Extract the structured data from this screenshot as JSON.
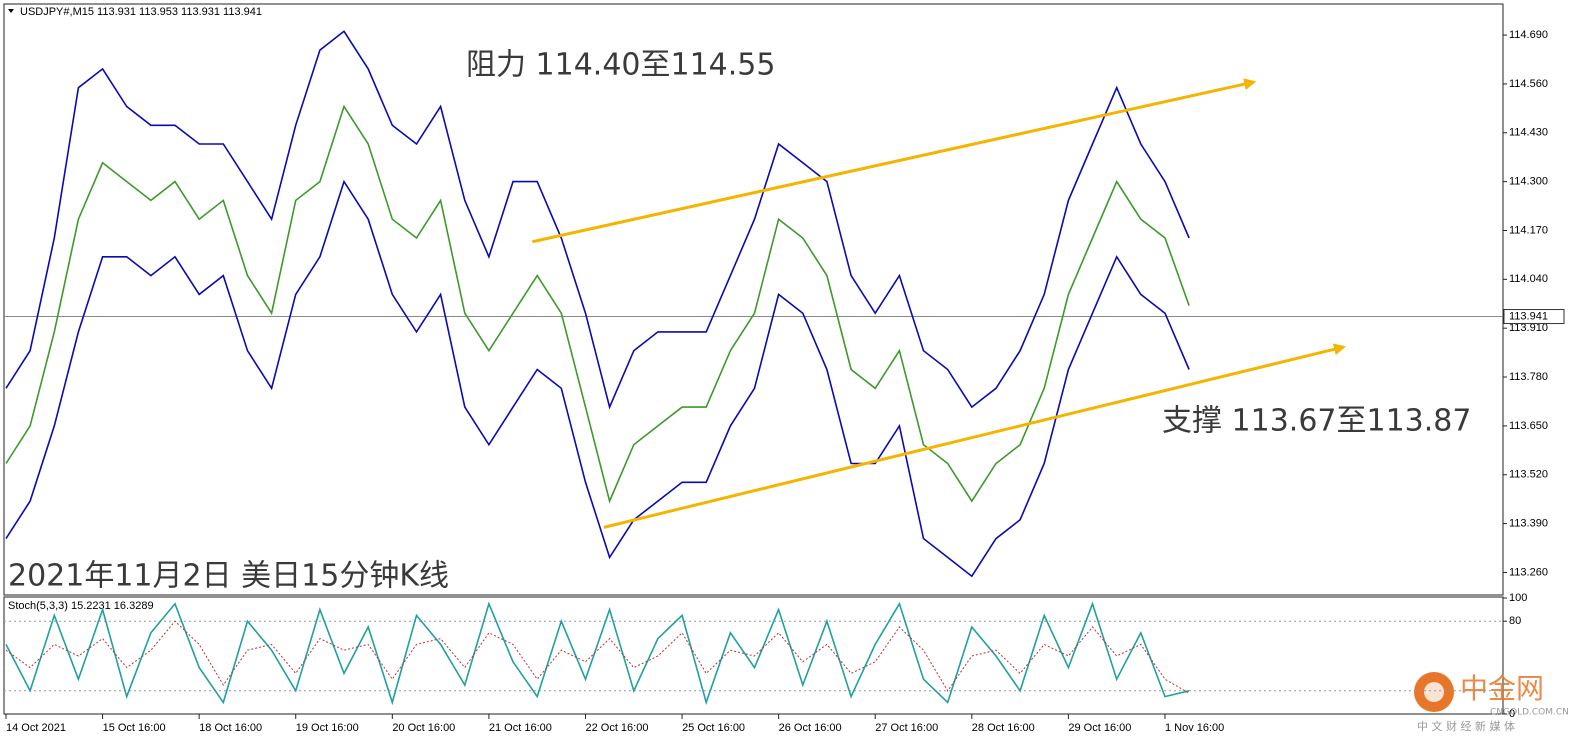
{
  "chart_data": [
    {
      "type": "line",
      "title": "USDJPY#,M15  113.931 113.953 113.931 113.941",
      "x": [
        0,
        0.25,
        0.5,
        0.75,
        1,
        1.25,
        1.5,
        1.75,
        2,
        2.25,
        2.5,
        2.75,
        3,
        3.25,
        3.5,
        3.75,
        4,
        4.25,
        4.5,
        4.75,
        5,
        5.25,
        5.5,
        5.75,
        6,
        6.25,
        6.5,
        6.75,
        7,
        7.25,
        7.5,
        7.75,
        8,
        8.25,
        8.5,
        8.75,
        9,
        9.25,
        9.5,
        9.75,
        10,
        10.25,
        10.5,
        10.75,
        11,
        11.25,
        11.5,
        11.75,
        12,
        12.25
      ],
      "series": [
        {
          "color": "#0a0ab4",
          "values": [
            113.75,
            113.85,
            114.15,
            114.55,
            114.6,
            114.5,
            114.45,
            114.45,
            114.4,
            114.4,
            114.3,
            114.2,
            114.45,
            114.65,
            114.7,
            114.6,
            114.45,
            114.4,
            114.5,
            114.25,
            114.1,
            114.3,
            114.3,
            114.15,
            113.95,
            113.7,
            113.85,
            113.9,
            113.9,
            113.9,
            114.05,
            114.2,
            114.4,
            114.35,
            114.3,
            114.05,
            113.95,
            114.05,
            113.85,
            113.8,
            113.7,
            113.75,
            113.85,
            114.0,
            114.25,
            114.4,
            114.55,
            114.4,
            114.3,
            114.15
          ]
        },
        {
          "color": "#3c9a2a",
          "values": [
            113.55,
            113.65,
            113.9,
            114.2,
            114.35,
            114.3,
            114.25,
            114.3,
            114.2,
            114.25,
            114.05,
            113.95,
            114.25,
            114.3,
            114.5,
            114.4,
            114.2,
            114.15,
            114.25,
            113.95,
            113.85,
            113.95,
            114.05,
            113.95,
            113.7,
            113.45,
            113.6,
            113.65,
            113.7,
            113.7,
            113.85,
            113.95,
            114.2,
            114.15,
            114.05,
            113.8,
            113.75,
            113.85,
            113.6,
            113.55,
            113.45,
            113.55,
            113.6,
            113.75,
            114.0,
            114.15,
            114.3,
            114.2,
            114.15,
            113.97
          ]
        },
        {
          "color": "#0a0ab4",
          "values": [
            113.35,
            113.45,
            113.65,
            113.9,
            114.1,
            114.1,
            114.05,
            114.1,
            114.0,
            114.05,
            113.85,
            113.75,
            114.0,
            114.1,
            114.3,
            114.2,
            114.0,
            113.9,
            114.0,
            113.7,
            113.6,
            113.7,
            113.8,
            113.75,
            113.5,
            113.3,
            113.4,
            113.45,
            113.5,
            113.5,
            113.65,
            113.75,
            114.0,
            113.95,
            113.8,
            113.55,
            113.55,
            113.65,
            113.35,
            113.3,
            113.25,
            113.35,
            113.4,
            113.55,
            113.8,
            113.95,
            114.1,
            114.0,
            113.95,
            113.8
          ]
        }
      ],
      "trend_lines": [
        {
          "color": "#f5b400",
          "x": [
            5.45,
            12.92
          ],
          "values": [
            114.14,
            114.565
          ]
        },
        {
          "color": "#f5b400",
          "x": [
            6.19,
            13.85
          ],
          "values": [
            113.38,
            113.86
          ]
        }
      ],
      "last_price": 113.941,
      "annotations": [
        "阻力 114.40至114.55",
        "支撑 113.67至113.87",
        "2021年11月2日 美日15分钟K线"
      ],
      "xlim": [
        0,
        15.5
      ],
      "xticks": [
        {
          "value": 0,
          "label": "14 Oct 2021"
        },
        {
          "value": 1,
          "label": "15 Oct 16:00"
        },
        {
          "value": 2,
          "label": "18 Oct 16:00"
        },
        {
          "value": 3,
          "label": "19 Oct 16:00"
        },
        {
          "value": 4,
          "label": "20 Oct 16:00"
        },
        {
          "value": 5,
          "label": "21 Oct 16:00"
        },
        {
          "value": 6,
          "label": "22 Oct 16:00"
        },
        {
          "value": 7,
          "label": "25 Oct 16:00"
        },
        {
          "value": 8,
          "label": "26 Oct 16:00"
        },
        {
          "value": 9,
          "label": "27 Oct 16:00"
        },
        {
          "value": 10,
          "label": "28 Oct 16:00"
        },
        {
          "value": 11,
          "label": "29 Oct 16:00"
        },
        {
          "value": 12,
          "label": "1 Nov 16:00"
        }
      ],
      "ylim": [
        113.2,
        114.77
      ],
      "yticks": [
        {
          "value": 114.69,
          "label": "114.690"
        },
        {
          "value": 114.56,
          "label": "114.560"
        },
        {
          "value": 114.43,
          "label": "114.430"
        },
        {
          "value": 114.3,
          "label": "114.300"
        },
        {
          "value": 114.17,
          "label": "114.170"
        },
        {
          "value": 114.04,
          "label": "114.040"
        },
        {
          "value": 113.91,
          "label": "113.910"
        },
        {
          "value": 113.78,
          "label": "113.780"
        },
        {
          "value": 113.65,
          "label": "113.650"
        },
        {
          "value": 113.52,
          "label": "113.520"
        },
        {
          "value": 113.39,
          "label": "113.390"
        },
        {
          "value": 113.26,
          "label": "113.260"
        }
      ]
    },
    {
      "type": "line",
      "title": "Stoch(5,3,3) 15.2231 16.3289",
      "x": [
        0,
        0.25,
        0.5,
        0.75,
        1,
        1.25,
        1.5,
        1.75,
        2,
        2.25,
        2.5,
        2.75,
        3,
        3.25,
        3.5,
        3.75,
        4,
        4.25,
        4.5,
        4.75,
        5,
        5.25,
        5.5,
        5.75,
        6,
        6.25,
        6.5,
        6.75,
        7,
        7.25,
        7.5,
        7.75,
        8,
        8.25,
        8.5,
        8.75,
        9,
        9.25,
        9.5,
        9.75,
        10,
        10.25,
        10.5,
        10.75,
        11,
        11.25,
        11.5,
        11.75,
        12,
        12.25
      ],
      "series": [
        {
          "color": "#20a0a0",
          "values": [
            60,
            20,
            85,
            30,
            90,
            15,
            70,
            95,
            40,
            10,
            80,
            55,
            20,
            90,
            35,
            75,
            10,
            85,
            60,
            25,
            95,
            45,
            15,
            80,
            30,
            90,
            20,
            65,
            85,
            10,
            70,
            40,
            90,
            25,
            80,
            15,
            60,
            95,
            30,
            10,
            75,
            50,
            20,
            85,
            40,
            95,
            30,
            70,
            15,
            20
          ],
          "dash": false
        },
        {
          "color": "#c03030",
          "values": [
            55,
            40,
            60,
            50,
            65,
            40,
            55,
            80,
            60,
            25,
            55,
            60,
            35,
            65,
            55,
            60,
            30,
            60,
            65,
            40,
            70,
            60,
            30,
            55,
            45,
            65,
            40,
            50,
            70,
            35,
            55,
            50,
            70,
            45,
            60,
            35,
            45,
            75,
            55,
            20,
            50,
            55,
            35,
            60,
            50,
            75,
            50,
            60,
            30,
            18
          ],
          "dash": true
        }
      ],
      "levels": [
        80,
        20
      ],
      "xlim": [
        0,
        15.5
      ],
      "ylim": [
        0,
        100
      ],
      "yticks": [
        100,
        80,
        0
      ]
    }
  ],
  "watermark": {
    "brand": "中金网",
    "site": "CNGOLD.COM.CN",
    "slogan": "中 文 财 经 新 媒 体"
  }
}
